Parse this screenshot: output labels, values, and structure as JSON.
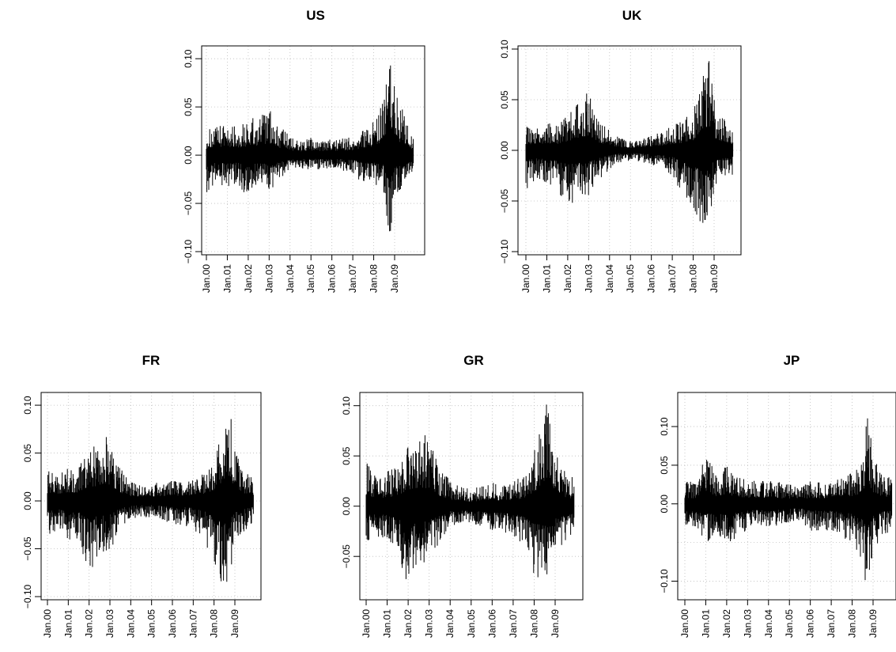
{
  "chart_data": [
    {
      "type": "line",
      "title": "US",
      "xlabel": "",
      "ylabel": "",
      "x_ticks": [
        "Jan.00",
        "Jan.01",
        "Jan.02",
        "Jan.03",
        "Jan.04",
        "Jan.05",
        "Jan.06",
        "Jan.07",
        "Jan.08",
        "Jan.09"
      ],
      "y_ticks": [
        "−0.10",
        "−0.05",
        "0.00",
        "0.05",
        "0.10"
      ],
      "y_tick_values": [
        -0.1,
        -0.05,
        0.0,
        0.05,
        0.1
      ],
      "ylim": [
        -0.1,
        0.11
      ],
      "grid": true,
      "series": [
        {
          "x_year": [
            2000.0,
            2000.5,
            2001.0,
            2001.5,
            2002.0,
            2002.5,
            2003.0,
            2003.5,
            2004.0,
            2004.5,
            2005.0,
            2005.5,
            2006.0,
            2006.5,
            2007.0,
            2007.5,
            2008.0,
            2008.5,
            2008.75,
            2009.0,
            2009.5,
            2009.9
          ],
          "upper": [
            0.027,
            0.03,
            0.035,
            0.03,
            0.038,
            0.04,
            0.05,
            0.03,
            0.02,
            0.015,
            0.018,
            0.015,
            0.017,
            0.018,
            0.02,
            0.03,
            0.035,
            0.06,
            0.11,
            0.07,
            0.04,
            0.022
          ],
          "lower": [
            -0.04,
            -0.03,
            -0.035,
            -0.03,
            -0.045,
            -0.03,
            -0.04,
            -0.025,
            -0.018,
            -0.015,
            -0.015,
            -0.015,
            -0.016,
            -0.016,
            -0.02,
            -0.03,
            -0.03,
            -0.04,
            -0.095,
            -0.05,
            -0.03,
            -0.025
          ]
        }
      ]
    },
    {
      "type": "line",
      "title": "UK",
      "xlabel": "",
      "ylabel": "",
      "x_ticks": [
        "Jan.00",
        "Jan.01",
        "Jan.02",
        "Jan.03",
        "Jan.04",
        "Jan.05",
        "Jan.06",
        "Jan.07",
        "Jan.08",
        "Jan.09"
      ],
      "y_ticks": [
        "−0.10",
        "−0.05",
        "0.00",
        "0.05",
        "0.10"
      ],
      "y_tick_values": [
        -0.1,
        -0.05,
        0.0,
        0.05,
        0.1
      ],
      "ylim": [
        -0.1,
        0.1
      ],
      "grid": true,
      "series": [
        {
          "x_year": [
            2000.0,
            2000.5,
            2001.0,
            2001.5,
            2002.0,
            2002.5,
            2003.0,
            2003.5,
            2004.0,
            2004.5,
            2005.0,
            2005.5,
            2006.0,
            2006.5,
            2007.0,
            2007.5,
            2008.0,
            2008.5,
            2008.75,
            2009.0,
            2009.5,
            2009.9
          ],
          "upper": [
            0.025,
            0.022,
            0.028,
            0.025,
            0.035,
            0.05,
            0.058,
            0.03,
            0.02,
            0.012,
            0.01,
            0.012,
            0.015,
            0.018,
            0.025,
            0.03,
            0.04,
            0.085,
            0.093,
            0.05,
            0.03,
            0.022
          ],
          "lower": [
            -0.04,
            -0.03,
            -0.035,
            -0.04,
            -0.055,
            -0.05,
            -0.045,
            -0.03,
            -0.02,
            -0.012,
            -0.01,
            -0.012,
            -0.015,
            -0.018,
            -0.025,
            -0.045,
            -0.055,
            -0.09,
            -0.07,
            -0.04,
            -0.03,
            -0.025
          ]
        }
      ]
    },
    {
      "type": "line",
      "title": "FR",
      "xlabel": "",
      "ylabel": "",
      "x_ticks": [
        "Jan.00",
        "Jan.01",
        "Jan.02",
        "Jan.03",
        "Jan.04",
        "Jan.05",
        "Jan.06",
        "Jan.07",
        "Jan.08",
        "Jan.09"
      ],
      "y_ticks": [
        "−0.10",
        "−0.05",
        "0.00",
        "0.05",
        "0.10"
      ],
      "y_tick_values": [
        -0.1,
        -0.05,
        0.0,
        0.05,
        0.1
      ],
      "ylim": [
        -0.1,
        0.11
      ],
      "grid": true,
      "series": [
        {
          "x_year": [
            2000.0,
            2000.5,
            2001.0,
            2001.5,
            2002.0,
            2002.5,
            2003.0,
            2003.5,
            2004.0,
            2004.5,
            2005.0,
            2005.5,
            2006.0,
            2006.5,
            2007.0,
            2007.5,
            2008.0,
            2008.5,
            2008.75,
            2009.0,
            2009.5,
            2009.9
          ],
          "upper": [
            0.032,
            0.03,
            0.035,
            0.035,
            0.055,
            0.065,
            0.068,
            0.035,
            0.02,
            0.018,
            0.018,
            0.02,
            0.022,
            0.02,
            0.025,
            0.03,
            0.045,
            0.09,
            0.105,
            0.055,
            0.03,
            0.025
          ],
          "lower": [
            -0.04,
            -0.035,
            -0.04,
            -0.045,
            -0.075,
            -0.06,
            -0.055,
            -0.03,
            -0.02,
            -0.018,
            -0.018,
            -0.02,
            -0.025,
            -0.025,
            -0.03,
            -0.04,
            -0.07,
            -0.095,
            -0.08,
            -0.045,
            -0.03,
            -0.025
          ]
        }
      ]
    },
    {
      "type": "line",
      "title": "GR",
      "xlabel": "",
      "ylabel": "",
      "x_ticks": [
        "Jan.00",
        "Jan.01",
        "Jan.02",
        "Jan.03",
        "Jan.04",
        "Jan.05",
        "Jan.06",
        "Jan.07",
        "Jan.08",
        "Jan.09"
      ],
      "y_ticks": [
        "−0.05",
        "0.00",
        "0.05",
        "0.10"
      ],
      "y_tick_values": [
        -0.05,
        0.0,
        0.05,
        0.1
      ],
      "ylim": [
        -0.09,
        0.11
      ],
      "grid": true,
      "series": [
        {
          "x_year": [
            2000.0,
            2000.5,
            2001.0,
            2001.5,
            2002.0,
            2002.5,
            2003.0,
            2003.5,
            2004.0,
            2004.5,
            2005.0,
            2005.5,
            2006.0,
            2006.5,
            2007.0,
            2007.5,
            2008.0,
            2008.5,
            2008.75,
            2009.0,
            2009.5,
            2009.9
          ],
          "upper": [
            0.045,
            0.03,
            0.035,
            0.04,
            0.06,
            0.075,
            0.07,
            0.04,
            0.025,
            0.02,
            0.018,
            0.02,
            0.025,
            0.022,
            0.025,
            0.03,
            0.055,
            0.1,
            0.108,
            0.06,
            0.035,
            0.028
          ],
          "lower": [
            -0.035,
            -0.03,
            -0.035,
            -0.045,
            -0.085,
            -0.06,
            -0.055,
            -0.035,
            -0.02,
            -0.018,
            -0.018,
            -0.02,
            -0.025,
            -0.025,
            -0.03,
            -0.04,
            -0.07,
            -0.075,
            -0.07,
            -0.05,
            -0.035,
            -0.03
          ]
        }
      ]
    },
    {
      "type": "line",
      "title": "JP",
      "xlabel": "",
      "ylabel": "",
      "x_ticks": [
        "Jan.00",
        "Jan.01",
        "Jan.02",
        "Jan.03",
        "Jan.04",
        "Jan.05",
        "Jan.06",
        "Jan.07",
        "Jan.08",
        "Jan.09"
      ],
      "y_ticks": [
        "−0.10",
        "0.05",
        "0.10"
      ],
      "y_tick_values": [
        -0.1,
        0.05,
        0.1
      ],
      "extra_gridlines": [
        0.0,
        -0.05
      ],
      "extra_tick_labels": [
        "0.00"
      ],
      "ylim": [
        -0.12,
        0.14
      ],
      "grid": true,
      "series": [
        {
          "x_year": [
            2000.0,
            2000.5,
            2001.0,
            2001.5,
            2002.0,
            2002.5,
            2003.0,
            2003.5,
            2004.0,
            2004.5,
            2005.0,
            2005.5,
            2006.0,
            2006.5,
            2007.0,
            2007.5,
            2008.0,
            2008.5,
            2008.75,
            2009.0,
            2009.5,
            2009.9
          ],
          "upper": [
            0.03,
            0.028,
            0.065,
            0.04,
            0.05,
            0.035,
            0.032,
            0.03,
            0.03,
            0.028,
            0.025,
            0.022,
            0.03,
            0.028,
            0.03,
            0.035,
            0.04,
            0.055,
            0.125,
            0.06,
            0.035,
            0.035
          ],
          "lower": [
            -0.03,
            -0.04,
            -0.055,
            -0.035,
            -0.06,
            -0.045,
            -0.035,
            -0.03,
            -0.032,
            -0.03,
            -0.025,
            -0.022,
            -0.035,
            -0.035,
            -0.035,
            -0.045,
            -0.05,
            -0.08,
            -0.12,
            -0.06,
            -0.04,
            -0.035
          ]
        }
      ]
    }
  ]
}
